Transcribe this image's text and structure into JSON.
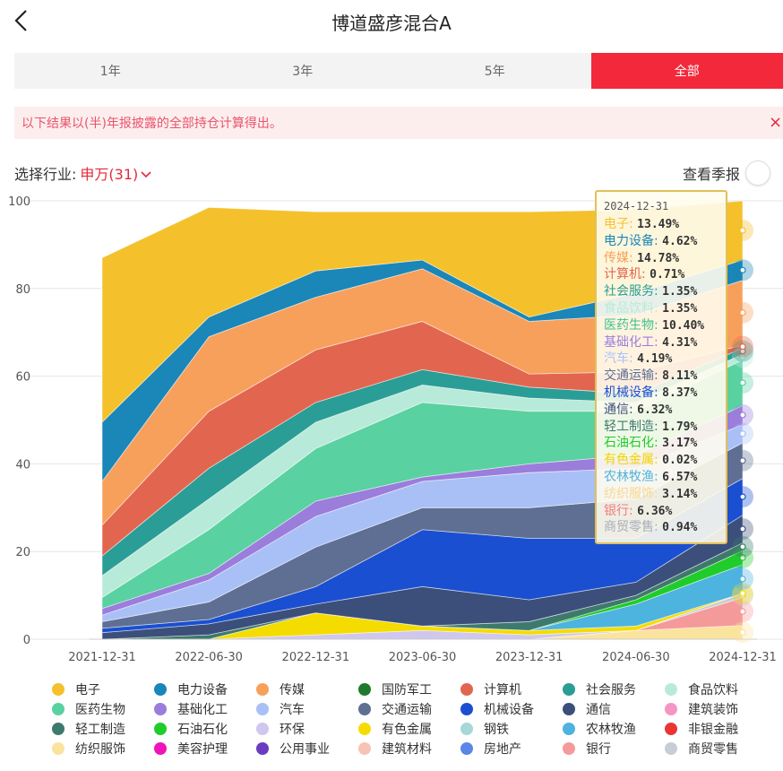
{
  "header": {
    "title": "博道盛彦混合A"
  },
  "tabs": [
    {
      "label": "1年",
      "active": false
    },
    {
      "label": "3年",
      "active": false
    },
    {
      "label": "5年",
      "active": false
    },
    {
      "label": "全部",
      "active": true
    }
  ],
  "notice": {
    "text": "以下结果以(半)年报披露的全部持仓计算得出。",
    "close": "×"
  },
  "industry": {
    "label": "选择行业:",
    "value": "申万(31)"
  },
  "season": {
    "label": "查看季报",
    "on": false
  },
  "tooltip": {
    "date": "2024-12-31",
    "rows": [
      {
        "name": "电子",
        "value": "13.49%",
        "color": "#f4c12c"
      },
      {
        "name": "电力设备",
        "value": "4.62%",
        "color": "#1b86b8"
      },
      {
        "name": "传媒",
        "value": "14.78%",
        "color": "#f7a05c"
      },
      {
        "name": "计算机",
        "value": "0.71%",
        "color": "#e2664f"
      },
      {
        "name": "社会服务",
        "value": "1.35%",
        "color": "#2a9d96"
      },
      {
        "name": "食品饮料",
        "value": "1.35%",
        "color": "#b8ead9"
      },
      {
        "name": "医药生物",
        "value": "10.40%",
        "color": "#3ec28e"
      },
      {
        "name": "基础化工",
        "value": "4.31%",
        "color": "#9b7ddc"
      },
      {
        "name": "汽车",
        "value": "4.19%",
        "color": "#a9c0f7"
      },
      {
        "name": "交通运输",
        "value": "8.11%",
        "color": "#5e6f93"
      },
      {
        "name": "机械设备",
        "value": "8.37%",
        "color": "#1a4fd1"
      },
      {
        "name": "通信",
        "value": "6.32%",
        "color": "#3b4f7a"
      },
      {
        "name": "轻工制造",
        "value": "1.79%",
        "color": "#3d7a6c"
      },
      {
        "name": "石油石化",
        "value": "3.17%",
        "color": "#1fcc2a"
      },
      {
        "name": "有色金属",
        "value": "0.02%",
        "color": "#f2d500"
      },
      {
        "name": "农林牧渔",
        "value": "6.57%",
        "color": "#4db3df"
      },
      {
        "name": "纺织服饰",
        "value": "3.14%",
        "color": "#f8d890"
      },
      {
        "name": "银行",
        "value": "6.36%",
        "color": "#f47a7a"
      },
      {
        "name": "商贸零售",
        "value": "0.94%",
        "color": "#a8adbb"
      }
    ]
  },
  "legend": [
    {
      "name": "电子",
      "color": "#f4c12c"
    },
    {
      "name": "电力设备",
      "color": "#1b86b8"
    },
    {
      "name": "传媒",
      "color": "#f7a05c"
    },
    {
      "name": "国防军工",
      "color": "#1e7a2c"
    },
    {
      "name": "计算机",
      "color": "#e2664f"
    },
    {
      "name": "社会服务",
      "color": "#2a9d96"
    },
    {
      "name": "食品饮料",
      "color": "#b8ead9"
    },
    {
      "name": "医药生物",
      "color": "#5ad1a0"
    },
    {
      "name": "基础化工",
      "color": "#9b7ddc"
    },
    {
      "name": "汽车",
      "color": "#a9c0f7"
    },
    {
      "name": "交通运输",
      "color": "#5e6f93"
    },
    {
      "name": "机械设备",
      "color": "#1a4fd1"
    },
    {
      "name": "通信",
      "color": "#3b4f7a"
    },
    {
      "name": "建筑装饰",
      "color": "#f595c4"
    },
    {
      "name": "轻工制造",
      "color": "#3d7a6c"
    },
    {
      "name": "石油石化",
      "color": "#1fcc2a"
    },
    {
      "name": "环保",
      "color": "#cfc7ee"
    },
    {
      "name": "有色金属",
      "color": "#f5dc00"
    },
    {
      "name": "钢铁",
      "color": "#a5d8d6"
    },
    {
      "name": "农林牧渔",
      "color": "#4db3df"
    },
    {
      "name": "非银金融",
      "color": "#ea3534"
    },
    {
      "name": "纺织服饰",
      "color": "#fae39d"
    },
    {
      "name": "美容护理",
      "color": "#ee14b9"
    },
    {
      "name": "公用事业",
      "color": "#6a3cc0"
    },
    {
      "name": "建筑材料",
      "color": "#f5c4b4"
    },
    {
      "name": "房地产",
      "color": "#5a86e8"
    },
    {
      "name": "银行",
      "color": "#f59a9a"
    },
    {
      "name": "商贸零售",
      "color": "#c8ccd6"
    }
  ],
  "chart_data": {
    "type": "area",
    "stacked": true,
    "x": [
      "2021-12-31",
      "2022-06-30",
      "2022-12-31",
      "2023-06-30",
      "2023-12-31",
      "2024-06-30",
      "2024-12-31"
    ],
    "ylim": [
      0,
      100
    ],
    "yticks": [
      0,
      20,
      40,
      60,
      80,
      100
    ],
    "grid": true,
    "series": [
      {
        "name": "纺织服饰",
        "color": "#fae39d",
        "values": [
          0,
          0,
          0,
          0,
          0,
          2,
          3.14
        ]
      },
      {
        "name": "银行",
        "color": "#f59a9a",
        "values": [
          0,
          0,
          0,
          0,
          0,
          0,
          6.36
        ]
      },
      {
        "name": "商贸零售",
        "color": "#c8ccd6",
        "values": [
          0,
          0,
          0,
          0,
          0,
          0,
          0.94
        ]
      },
      {
        "name": "环保",
        "color": "#cfc7ee",
        "values": [
          0,
          0,
          1,
          2,
          1,
          0,
          0
        ]
      },
      {
        "name": "有色金属",
        "color": "#f5dc00",
        "values": [
          0,
          0,
          5,
          1,
          1,
          1,
          0.02
        ]
      },
      {
        "name": "农林牧渔",
        "color": "#4db3df",
        "values": [
          0,
          0,
          0,
          0,
          0,
          5,
          6.57
        ]
      },
      {
        "name": "石油石化",
        "color": "#1fcc2a",
        "values": [
          0,
          0,
          0,
          0,
          0,
          1,
          3.17
        ]
      },
      {
        "name": "轻工制造",
        "color": "#3d7a6c",
        "values": [
          0,
          1,
          0,
          0,
          2,
          1,
          1.79
        ]
      },
      {
        "name": "通信",
        "color": "#3b4f7a",
        "values": [
          1.5,
          2.5,
          2,
          9,
          5,
          3,
          6.32
        ]
      },
      {
        "name": "机械设备",
        "color": "#1a4fd1",
        "values": [
          1,
          1,
          4,
          13,
          14,
          10,
          8.37
        ]
      },
      {
        "name": "交通运输",
        "color": "#5e6f93",
        "values": [
          1.5,
          4,
          9,
          5,
          7,
          9,
          8.11
        ]
      },
      {
        "name": "汽车",
        "color": "#a9c0f7",
        "values": [
          1.5,
          5,
          7,
          6,
          8,
          7,
          4.19
        ]
      },
      {
        "name": "基础化工",
        "color": "#9b7ddc",
        "values": [
          1.5,
          1.5,
          3.5,
          1,
          2,
          3,
          4.31
        ]
      },
      {
        "name": "医药生物",
        "color": "#5ad1a0",
        "values": [
          2.5,
          10,
          12,
          17,
          12,
          10,
          10.4
        ]
      },
      {
        "name": "食品饮料",
        "color": "#b8ead9",
        "values": [
          5,
          7,
          6,
          4,
          3,
          2,
          1.35
        ]
      },
      {
        "name": "社会服务",
        "color": "#2a9d96",
        "values": [
          4.5,
          7,
          4.5,
          3.5,
          2.5,
          2,
          1.35
        ]
      },
      {
        "name": "计算机",
        "color": "#e2664f",
        "values": [
          7,
          13,
          12,
          11,
          3,
          5,
          0.71
        ]
      },
      {
        "name": "传媒",
        "color": "#f7a05c",
        "values": [
          10,
          17,
          12,
          12,
          12,
          13,
          14.78
        ]
      },
      {
        "name": "电力设备",
        "color": "#1b86b8",
        "values": [
          13.5,
          4.5,
          6,
          2,
          1,
          5,
          4.62
        ]
      },
      {
        "name": "电子",
        "color": "#f4c12c",
        "values": [
          37.5,
          25,
          13.5,
          11,
          24,
          19,
          13.49
        ]
      }
    ]
  }
}
